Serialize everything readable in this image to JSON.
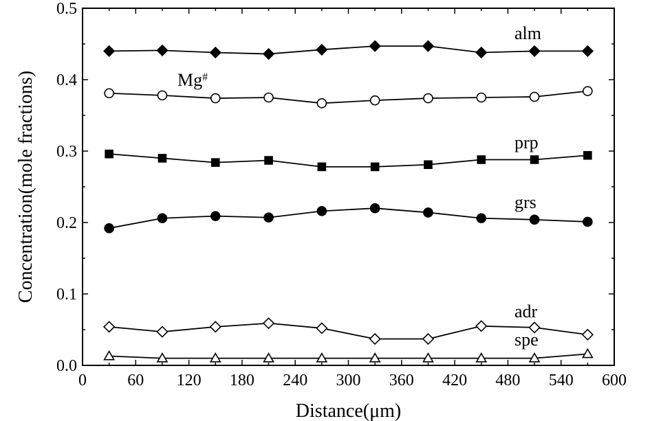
{
  "chart_data": {
    "type": "line",
    "xlabel": "Distance(μm)",
    "ylabel": "Concentration(mole fractions)",
    "xlim": [
      0,
      600
    ],
    "ylim": [
      0,
      0.5
    ],
    "xticks": [
      0,
      60,
      120,
      180,
      240,
      300,
      360,
      420,
      480,
      540,
      600
    ],
    "yticks": [
      0.0,
      0.1,
      0.2,
      0.3,
      0.4,
      0.5
    ],
    "ytick_labels": [
      "0.0",
      "0.1",
      "0.2",
      "0.3",
      "0.4",
      "0.5"
    ],
    "grid": false,
    "x": [
      30,
      90,
      150,
      210,
      270,
      330,
      390,
      450,
      510,
      570
    ],
    "series": [
      {
        "name": "alm",
        "marker": "diamond-filled",
        "values": [
          0.44,
          0.441,
          0.438,
          0.436,
          0.442,
          0.447,
          0.447,
          0.438,
          0.44,
          0.44
        ]
      },
      {
        "name": "Mg",
        "superscript": "#",
        "marker": "circle-open",
        "values": [
          0.381,
          0.378,
          0.374,
          0.375,
          0.367,
          0.371,
          0.374,
          0.375,
          0.376,
          0.384
        ]
      },
      {
        "name": "prp",
        "marker": "square-filled",
        "values": [
          0.296,
          0.29,
          0.284,
          0.287,
          0.278,
          0.278,
          0.281,
          0.288,
          0.288,
          0.294
        ]
      },
      {
        "name": "grs",
        "marker": "circle-filled",
        "values": [
          0.192,
          0.206,
          0.209,
          0.207,
          0.216,
          0.22,
          0.214,
          0.206,
          0.204,
          0.201
        ]
      },
      {
        "name": "adr",
        "marker": "diamond-open",
        "values": [
          0.054,
          0.047,
          0.054,
          0.059,
          0.052,
          0.037,
          0.037,
          0.055,
          0.053,
          0.043
        ]
      },
      {
        "name": "spe",
        "marker": "triangle-open",
        "values": [
          0.013,
          0.01,
          0.01,
          0.01,
          0.01,
          0.01,
          0.01,
          0.01,
          0.01,
          0.016
        ]
      }
    ]
  }
}
